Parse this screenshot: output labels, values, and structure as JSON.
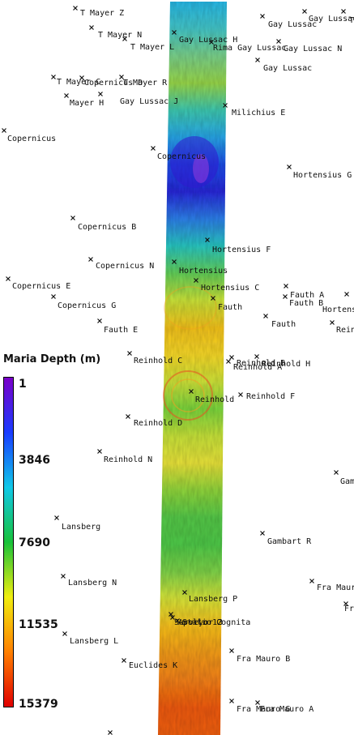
{
  "legend": {
    "title": "Maria Depth (m)",
    "ticks": [
      "1",
      "3846",
      "7690",
      "11535",
      "15379"
    ],
    "colors": [
      "#7a00c8",
      "#1a3cff",
      "#10c8e8",
      "#18c23a",
      "#f0ee10",
      "#ff8000",
      "#e00000"
    ]
  },
  "strip": {
    "band_colors": [
      "#2ab8e6",
      "#45c6c8",
      "#7ad08a",
      "#98d64a",
      "#3fc8b0",
      "#2aa6e8",
      "#1f4fe8",
      "#2a2ad8",
      "#2f7fe8",
      "#2bc6c0",
      "#63cf5a",
      "#c9e23a",
      "#f2c11e",
      "#f6d82a",
      "#cde23a",
      "#7ad43e",
      "#c7e23a",
      "#e8e23a",
      "#8fd43c",
      "#55c84a",
      "#4fc84a",
      "#7fd24a",
      "#d8e43a",
      "#f7c020",
      "#f29b1a",
      "#f2801a",
      "#ee5a18",
      "#f06018"
    ]
  },
  "craters": [
    {
      "name": "T Mayer Z"
    },
    {
      "name": "T Mayer N"
    },
    {
      "name": "T Mayer L"
    },
    {
      "name": "Gay Lussac H"
    },
    {
      "name": "Rima Gay Lussac"
    },
    {
      "name": "Gay Lussac"
    },
    {
      "name": "Gay Lussac A"
    },
    {
      "name": "Gay Lussac N"
    },
    {
      "name": "Gay Lussac"
    },
    {
      "name": "T Mayer D"
    },
    {
      "name": "T Mayer C"
    },
    {
      "name": "Copernicus D"
    },
    {
      "name": "T Mayer R"
    },
    {
      "name": "Mayer H"
    },
    {
      "name": "Gay Lussac J"
    },
    {
      "name": "Milichius E"
    },
    {
      "name": "Copernicus"
    },
    {
      "name": "Copernicus"
    },
    {
      "name": "Hortensius G"
    },
    {
      "name": "Copernicus B"
    },
    {
      "name": "Hortensius F"
    },
    {
      "name": "Copernicus N"
    },
    {
      "name": "Hortensius"
    },
    {
      "name": "Copernicus E"
    },
    {
      "name": "Hortensius C"
    },
    {
      "name": "Copernicus G"
    },
    {
      "name": "Fauth"
    },
    {
      "name": "Fauth A"
    },
    {
      "name": "Fauth B"
    },
    {
      "name": "Hortensius E"
    },
    {
      "name": "Fauth E"
    },
    {
      "name": "Fauth"
    },
    {
      "name": "Reinhold G"
    },
    {
      "name": "Reinhold C"
    },
    {
      "name": "Reinhold B"
    },
    {
      "name": "Reinhold A"
    },
    {
      "name": "Reinhold H"
    },
    {
      "name": "Reinhold"
    },
    {
      "name": "Reinhold F"
    },
    {
      "name": "Reinhold D"
    },
    {
      "name": "Reinhold N"
    },
    {
      "name": "Gambart"
    },
    {
      "name": "Lansberg"
    },
    {
      "name": "Gambart R"
    },
    {
      "name": "Lansberg N"
    },
    {
      "name": "Fra Mauro"
    },
    {
      "name": "Lansberg P"
    },
    {
      "name": "Fra"
    },
    {
      "name": "Surveyor 3"
    },
    {
      "name": "Apollo 12"
    },
    {
      "name": "Statio Cognita"
    },
    {
      "name": "Lansberg L"
    },
    {
      "name": "Fra Mauro B"
    },
    {
      "name": "Euclides K"
    },
    {
      "name": "Fra Mauro G"
    },
    {
      "name": "Fra Mauro A"
    }
  ]
}
